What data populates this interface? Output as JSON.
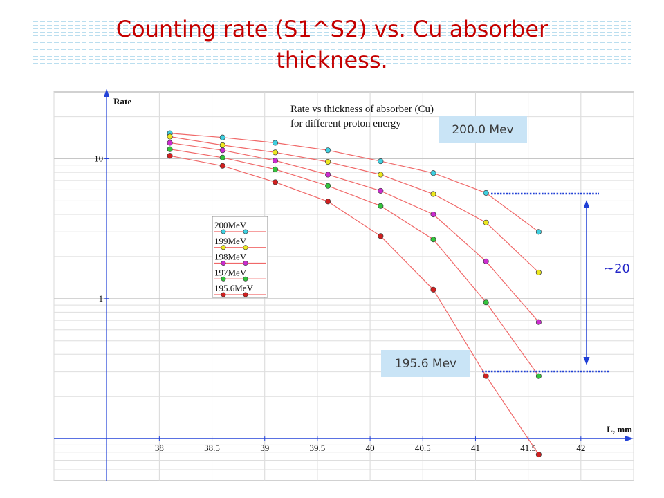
{
  "slide": {
    "title_lines": [
      "Counting rate (S1^S2) vs. Cu absorber",
      "thickness."
    ]
  },
  "chart_data": {
    "type": "line",
    "title_lines": [
      "Rate vs thickness of absorber (Cu)",
      "for different proton energy"
    ],
    "xlabel": "L, mm",
    "ylabel": "Rate",
    "xlim": [
      37,
      42.5
    ],
    "ylim": [
      0.05,
      30
    ],
    "yscale": "log",
    "y_axis_at_x": 37.5,
    "x_axis_at_y": 0.1,
    "grid": true,
    "legend_position": "middle-left",
    "x_ticks": [
      38,
      38.5,
      39,
      39.5,
      40,
      40.5,
      41,
      41.5,
      42
    ],
    "x_tick_labels": [
      "38",
      "38.5",
      "39",
      "39.5",
      "40",
      "40.5",
      "41",
      "41.5",
      "42"
    ],
    "y_ticks": [
      1,
      10
    ],
    "y_tick_labels": [
      "1",
      "10"
    ],
    "axis_color": "#2342d8",
    "line_color": "#f06868",
    "x": [
      38.1,
      38.6,
      39.1,
      39.6,
      40.1,
      40.6,
      41.1,
      41.6
    ],
    "series": [
      {
        "name": "200MeV",
        "color": "#3fcfdf",
        "values": [
          15.2,
          14.2,
          13.0,
          11.5,
          9.6,
          7.9,
          5.7,
          3.0
        ]
      },
      {
        "name": "199MeV",
        "color": "#ece71f",
        "values": [
          14.4,
          12.5,
          11.1,
          9.5,
          7.7,
          5.6,
          3.5,
          1.54
        ]
      },
      {
        "name": "198MeV",
        "color": "#cc2ccf",
        "values": [
          13.0,
          11.5,
          9.7,
          7.7,
          5.9,
          4.0,
          1.85,
          0.68
        ]
      },
      {
        "name": "197MeV",
        "color": "#33c43c",
        "values": [
          11.7,
          10.2,
          8.4,
          6.4,
          4.6,
          2.65,
          0.94,
          0.28
        ]
      },
      {
        "name": "195.6MeV",
        "color": "#d11f1f",
        "values": [
          10.5,
          8.9,
          6.8,
          4.95,
          2.8,
          1.16,
          0.28,
          0.077
        ]
      }
    ],
    "annotations": {
      "callout_top": "200.0 Mev",
      "callout_bottom": "195.6 Mev",
      "ratio": "~20"
    }
  }
}
